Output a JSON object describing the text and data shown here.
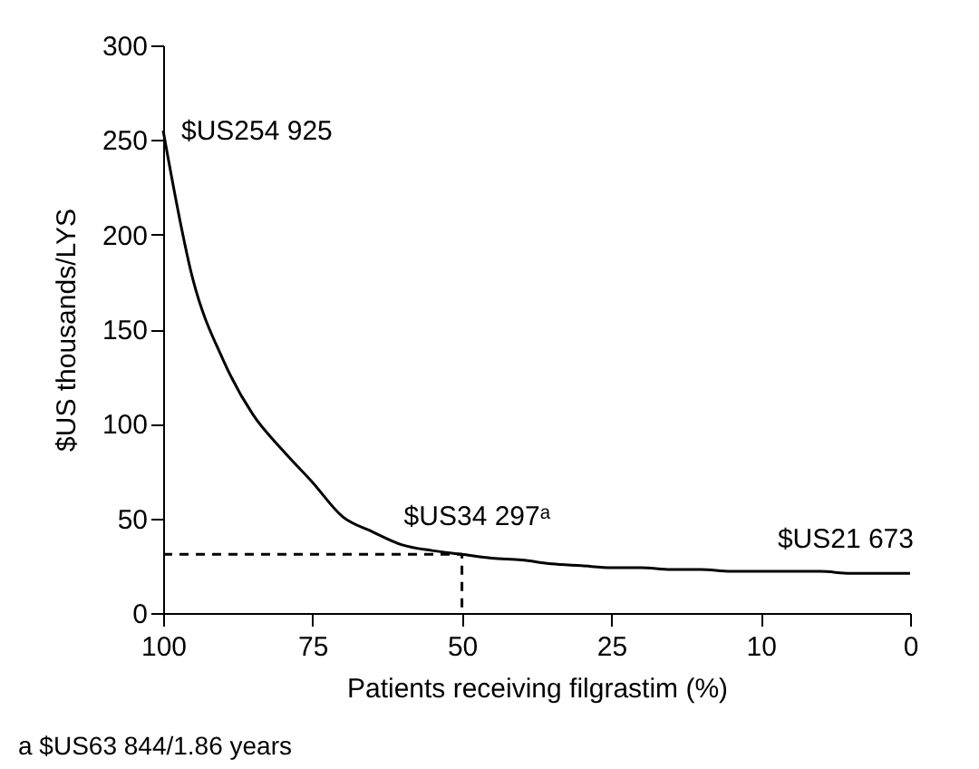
{
  "chart_data": {
    "type": "line",
    "xlabel": "Patients receiving filgrastim (%)",
    "ylabel": "$US thousands/LYS",
    "categories": [
      "100",
      null,
      null,
      null,
      null,
      "75",
      null,
      null,
      null,
      null,
      "50",
      null,
      null,
      null,
      null,
      "25",
      null,
      null,
      null,
      null,
      "10",
      null,
      null,
      null,
      null,
      "0"
    ],
    "ylim": [
      0,
      300
    ],
    "yticks": [
      0,
      50,
      100,
      150,
      200,
      250,
      300
    ],
    "grid": false,
    "marker": "none",
    "series": [
      {
        "color": "#000000",
        "line_style": "solid",
        "values": [
          255,
          176,
          134,
          105,
          86,
          69,
          51,
          43,
          36,
          33,
          31,
          29,
          28,
          26,
          25,
          24,
          24,
          23,
          23,
          22,
          22,
          22,
          22,
          21,
          21,
          21
        ]
      },
      {
        "color": "#000000",
        "line_style": "dashed",
        "x": [
          "100",
          "50",
          "50"
        ],
        "values": [
          31,
          31,
          0
        ]
      }
    ],
    "annotations": [
      {
        "text": "$US254 925",
        "x": "100",
        "y": 255
      },
      {
        "text": "$US34 297ᵃ",
        "x": "50",
        "y": 34
      },
      {
        "text": "$US21 673",
        "x": "0",
        "y": 22
      },
      "a  $US63 844/1.86 years"
    ]
  }
}
